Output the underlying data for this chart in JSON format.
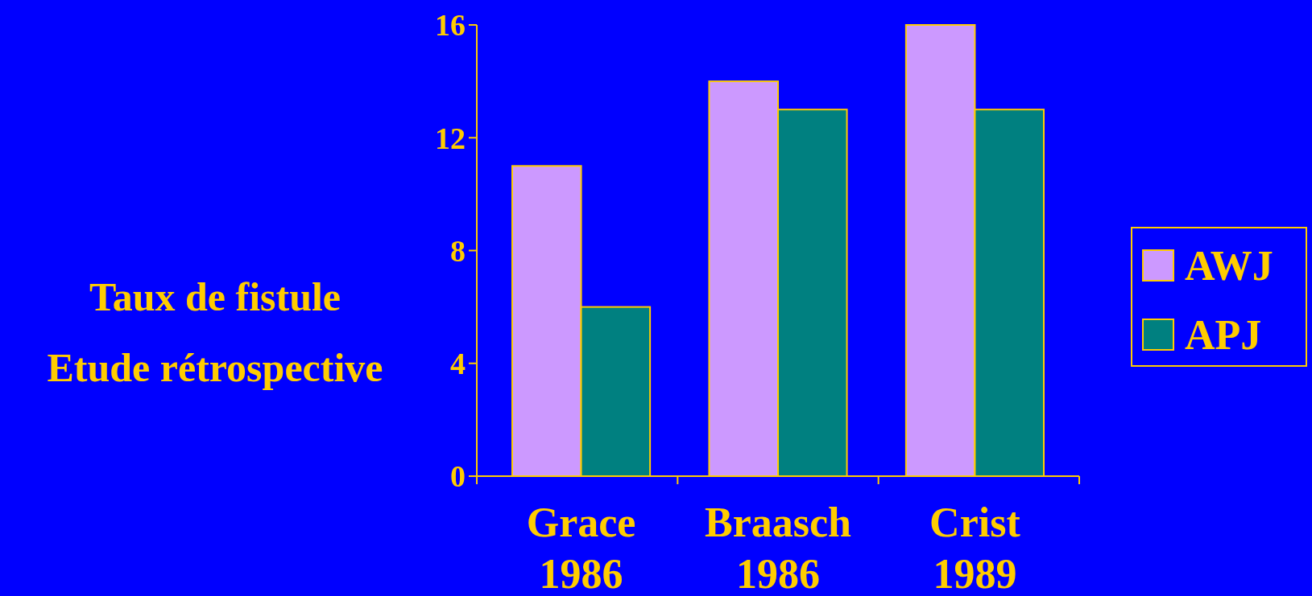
{
  "chart_data": {
    "type": "bar",
    "title": "Taux de fistule",
    "subtitle": "Etude rétrospective",
    "categories": [
      "Grace 1986",
      "Braasch 1986",
      "Crist 1989"
    ],
    "series": [
      {
        "name": "AWJ",
        "color": "#cc99ff",
        "values": [
          11,
          14,
          16
        ]
      },
      {
        "name": "APJ",
        "color": "#008080",
        "values": [
          6,
          13,
          13
        ]
      }
    ],
    "ylim": [
      0,
      16
    ],
    "yticks": [
      0,
      4,
      8,
      12,
      16
    ],
    "grid": false,
    "legend": "right"
  }
}
